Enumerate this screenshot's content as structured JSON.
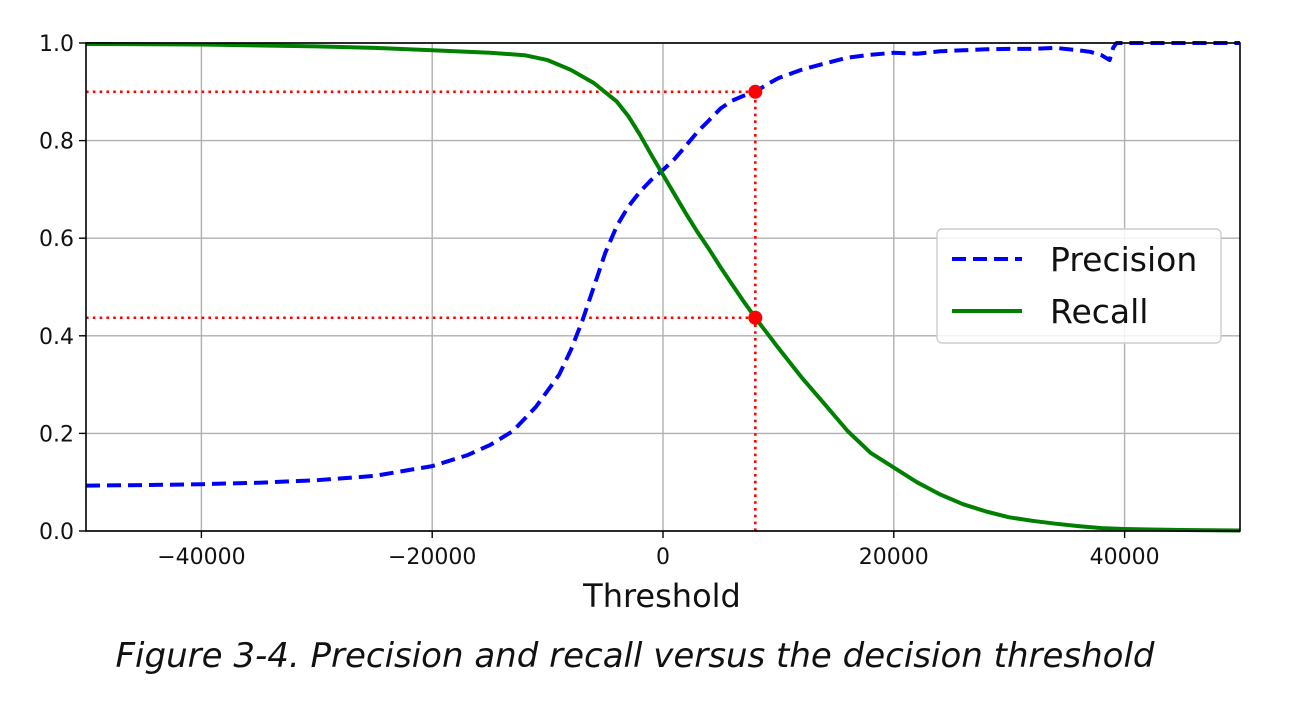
{
  "caption": "Figure 3-4. Precision and recall versus the decision threshold",
  "chart_data": {
    "type": "line",
    "xlabel": "Threshold",
    "ylabel": "",
    "xlim": [
      -50000,
      50000
    ],
    "ylim": [
      0.0,
      1.0
    ],
    "xticks": [
      -40000,
      -20000,
      0,
      20000,
      40000
    ],
    "xtick_labels": [
      "−40000",
      "−20000",
      "0",
      "20000",
      "40000"
    ],
    "yticks": [
      0.0,
      0.2,
      0.4,
      0.6,
      0.8,
      1.0
    ],
    "ytick_labels": [
      "0.0",
      "0.2",
      "0.4",
      "0.6",
      "0.8",
      "1.0"
    ],
    "grid": true,
    "legend_position": "center-right",
    "series": [
      {
        "name": "Precision",
        "color": "#0000ff",
        "style": "dashed",
        "x": [
          -50000,
          -45000,
          -40000,
          -35000,
          -30000,
          -25000,
          -20000,
          -17000,
          -15000,
          -13000,
          -11000,
          -9000,
          -8000,
          -7000,
          -6000,
          -5000,
          -4000,
          -3000,
          -2000,
          -1000,
          0,
          1000,
          2000,
          3000,
          4000,
          5000,
          6000,
          7000,
          8000,
          9000,
          10000,
          12000,
          14000,
          16000,
          18000,
          20000,
          22000,
          24000,
          26000,
          28000,
          30000,
          32000,
          34000,
          36000,
          37000,
          38000,
          38700,
          39000,
          39300,
          40000,
          45000,
          50000
        ],
        "y": [
          0.093,
          0.094,
          0.096,
          0.099,
          0.104,
          0.113,
          0.133,
          0.155,
          0.176,
          0.205,
          0.255,
          0.32,
          0.37,
          0.43,
          0.5,
          0.57,
          0.625,
          0.665,
          0.695,
          0.72,
          0.74,
          0.762,
          0.79,
          0.818,
          0.842,
          0.866,
          0.882,
          0.892,
          0.9,
          0.915,
          0.928,
          0.945,
          0.958,
          0.97,
          0.976,
          0.98,
          0.978,
          0.983,
          0.985,
          0.987,
          0.988,
          0.988,
          0.99,
          0.985,
          0.982,
          0.975,
          0.965,
          0.99,
          1.0,
          1.0,
          1.0,
          1.0
        ]
      },
      {
        "name": "Recall",
        "color": "#008000",
        "style": "solid",
        "x": [
          -50000,
          -40000,
          -30000,
          -25000,
          -20000,
          -15000,
          -12000,
          -10000,
          -8000,
          -6000,
          -4000,
          -3000,
          -2000,
          -1000,
          0,
          1000,
          2000,
          3000,
          4000,
          5000,
          6000,
          7000,
          8000,
          10000,
          12000,
          14000,
          16000,
          18000,
          20000,
          22000,
          24000,
          26000,
          28000,
          30000,
          32000,
          34000,
          36000,
          38000,
          40000,
          45000,
          50000
        ],
        "y": [
          0.998,
          0.997,
          0.993,
          0.99,
          0.985,
          0.98,
          0.975,
          0.965,
          0.945,
          0.918,
          0.88,
          0.85,
          0.812,
          0.77,
          0.73,
          0.69,
          0.65,
          0.612,
          0.577,
          0.54,
          0.505,
          0.47,
          0.437,
          0.375,
          0.315,
          0.26,
          0.205,
          0.16,
          0.13,
          0.1,
          0.075,
          0.055,
          0.04,
          0.028,
          0.021,
          0.015,
          0.01,
          0.006,
          0.004,
          0.002,
          0.001
        ]
      }
    ],
    "markers": [
      {
        "x": 8000,
        "y": 0.9,
        "color": "#ff0000"
      },
      {
        "x": 8000,
        "y": 0.437,
        "color": "#ff0000"
      }
    ],
    "reference_lines": [
      {
        "orientation": "horizontal",
        "y": 0.9,
        "x_from": -50000,
        "x_to": 8000,
        "color": "#ff0000",
        "style": "dotted"
      },
      {
        "orientation": "horizontal",
        "y": 0.437,
        "x_from": -50000,
        "x_to": 8000,
        "color": "#ff0000",
        "style": "dotted"
      },
      {
        "orientation": "vertical",
        "x": 8000,
        "y_from": 0.0,
        "y_to": 0.9,
        "color": "#ff0000",
        "style": "dotted"
      }
    ]
  }
}
